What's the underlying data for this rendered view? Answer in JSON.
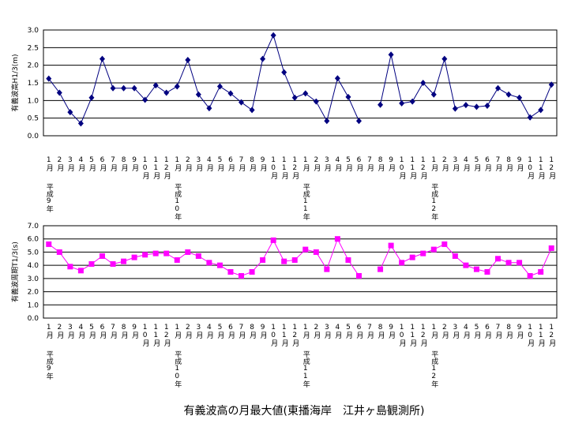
{
  "caption": "有義波高の月最大値(東播海岸　江井ヶ島観測所)",
  "chart_data": [
    {
      "type": "line",
      "ylabel": "有義波高H1/3(m)",
      "categories": [
        "1月",
        "2月",
        "3月",
        "4月",
        "5月",
        "6月",
        "7月",
        "8月",
        "9月",
        "10月",
        "11月",
        "12月",
        "1月",
        "2月",
        "3月",
        "4月",
        "5月",
        "6月",
        "7月",
        "8月",
        "9月",
        "10月",
        "11月",
        "12月",
        "1月",
        "2月",
        "3月",
        "4月",
        "5月",
        "6月",
        "7月",
        "8月",
        "9月",
        "10月",
        "11月",
        "12月",
        "1月",
        "2月",
        "3月",
        "4月",
        "5月",
        "6月",
        "7月",
        "8月",
        "9月",
        "10月",
        "11月",
        "12月"
      ],
      "year_labels": [
        "平成9年",
        null,
        null,
        null,
        null,
        null,
        null,
        null,
        null,
        null,
        null,
        null,
        "平成10年",
        null,
        null,
        null,
        null,
        null,
        null,
        null,
        null,
        null,
        null,
        null,
        "平成11年",
        null,
        null,
        null,
        null,
        null,
        null,
        null,
        null,
        null,
        null,
        null,
        "平成12年",
        null,
        null,
        null,
        null,
        null,
        null,
        null,
        null,
        null,
        null,
        null
      ],
      "series": [
        {
          "color": "#000080",
          "marker": "diamond",
          "values": [
            1.62,
            1.22,
            0.67,
            0.35,
            1.08,
            2.18,
            1.35,
            1.35,
            1.35,
            1.02,
            1.43,
            1.22,
            1.4,
            2.15,
            1.17,
            0.78,
            1.4,
            1.2,
            0.95,
            0.73,
            2.18,
            2.85,
            1.8,
            1.08,
            1.2,
            0.97,
            0.42,
            1.63,
            1.1,
            0.42,
            null,
            0.88,
            2.3,
            0.92,
            0.97,
            1.5,
            1.17,
            2.18,
            0.77,
            0.87,
            0.82,
            0.85,
            1.35,
            1.17,
            1.08,
            0.52,
            0.73,
            1.45
          ]
        }
      ],
      "ylim": [
        0,
        3
      ],
      "yticks": [
        {
          "value": 0,
          "label": "0.0"
        },
        {
          "value": 0.5,
          "label": "0.5"
        },
        {
          "value": 1,
          "label": "1.0"
        },
        {
          "value": 1.5,
          "label": "1.5"
        },
        {
          "value": 2,
          "label": "2.0"
        },
        {
          "value": 2.5,
          "label": "2.5"
        },
        {
          "value": 3,
          "label": "3.0"
        }
      ],
      "grid": true
    },
    {
      "type": "line",
      "ylabel": "有義波周期T1/3(s)",
      "categories": [
        "1月",
        "2月",
        "3月",
        "4月",
        "5月",
        "6月",
        "7月",
        "8月",
        "9月",
        "10月",
        "11月",
        "12月",
        "1月",
        "2月",
        "3月",
        "4月",
        "5月",
        "6月",
        "7月",
        "8月",
        "9月",
        "10月",
        "11月",
        "12月",
        "1月",
        "2月",
        "3月",
        "4月",
        "5月",
        "6月",
        "7月",
        "8月",
        "9月",
        "10月",
        "11月",
        "12月",
        "1月",
        "2月",
        "3月",
        "4月",
        "5月",
        "6月",
        "7月",
        "8月",
        "9月",
        "10月",
        "11月",
        "12月"
      ],
      "year_labels": [
        "平成9年",
        null,
        null,
        null,
        null,
        null,
        null,
        null,
        null,
        null,
        null,
        null,
        "平成10年",
        null,
        null,
        null,
        null,
        null,
        null,
        null,
        null,
        null,
        null,
        null,
        "平成11年",
        null,
        null,
        null,
        null,
        null,
        null,
        null,
        null,
        null,
        null,
        null,
        "平成12年",
        null,
        null,
        null,
        null,
        null,
        null,
        null,
        null,
        null,
        null,
        null
      ],
      "series": [
        {
          "color": "#ff00ff",
          "marker": "square",
          "values": [
            5.6,
            5.0,
            3.9,
            3.6,
            4.1,
            4.7,
            4.1,
            4.3,
            4.6,
            4.8,
            4.9,
            4.9,
            4.4,
            5.0,
            4.7,
            4.2,
            4.0,
            3.5,
            3.2,
            3.5,
            4.4,
            5.9,
            4.3,
            4.4,
            5.2,
            5.0,
            3.7,
            6.0,
            4.4,
            3.2,
            null,
            3.7,
            5.5,
            4.2,
            4.6,
            4.9,
            5.2,
            5.6,
            4.7,
            4.0,
            3.7,
            3.5,
            4.5,
            4.2,
            4.2,
            3.2,
            3.5,
            5.3
          ]
        }
      ],
      "ylim": [
        0,
        7
      ],
      "yticks": [
        {
          "value": 0,
          "label": "0.0"
        },
        {
          "value": 1,
          "label": "1.0"
        },
        {
          "value": 2,
          "label": "2.0"
        },
        {
          "value": 3,
          "label": "3.0"
        },
        {
          "value": 4,
          "label": "4.0"
        },
        {
          "value": 5,
          "label": "5.0"
        },
        {
          "value": 6,
          "label": "6.0"
        },
        {
          "value": 7,
          "label": "7.0"
        }
      ],
      "grid": true
    }
  ]
}
